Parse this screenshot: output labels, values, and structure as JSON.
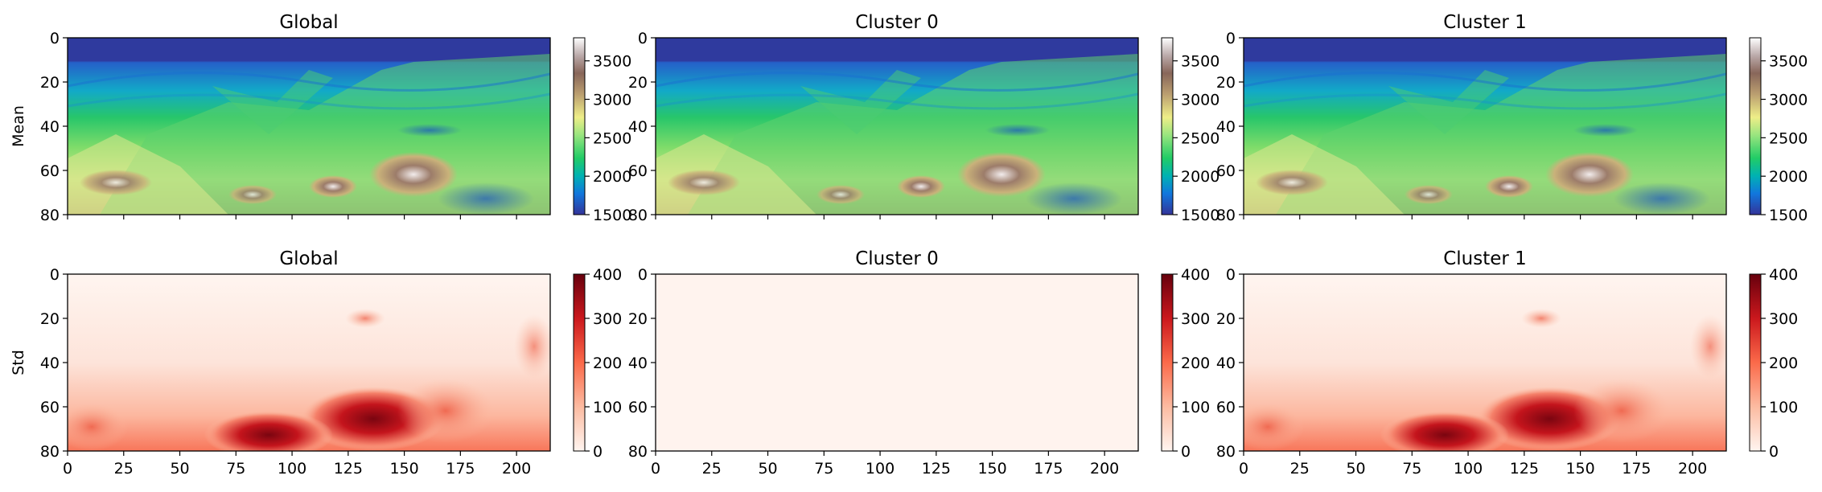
{
  "chart_data": {
    "type": "heatmap",
    "rows": [
      {
        "ylabel": "Mean",
        "colormap": "terrain",
        "colorbar": {
          "ticks": [
            1500,
            2000,
            2500,
            3000,
            3500
          ],
          "range": [
            1500,
            3800
          ]
        },
        "panels": [
          {
            "title": "Global"
          },
          {
            "title": "Cluster 0"
          },
          {
            "title": "Cluster 1"
          }
        ]
      },
      {
        "ylabel": "Std",
        "colormap": "reds",
        "colorbar": {
          "ticks": [
            0,
            100,
            200,
            300,
            400
          ],
          "range": [
            0,
            400
          ]
        },
        "panels": [
          {
            "title": "Global"
          },
          {
            "title": "Cluster 0"
          },
          {
            "title": "Cluster 1"
          }
        ]
      }
    ],
    "x_ticks": [
      0,
      25,
      50,
      75,
      100,
      125,
      150,
      175,
      200
    ],
    "y_ticks": [
      0,
      20,
      40,
      60,
      80
    ],
    "x_range": [
      0,
      215
    ],
    "y_range": [
      0,
      80
    ]
  }
}
